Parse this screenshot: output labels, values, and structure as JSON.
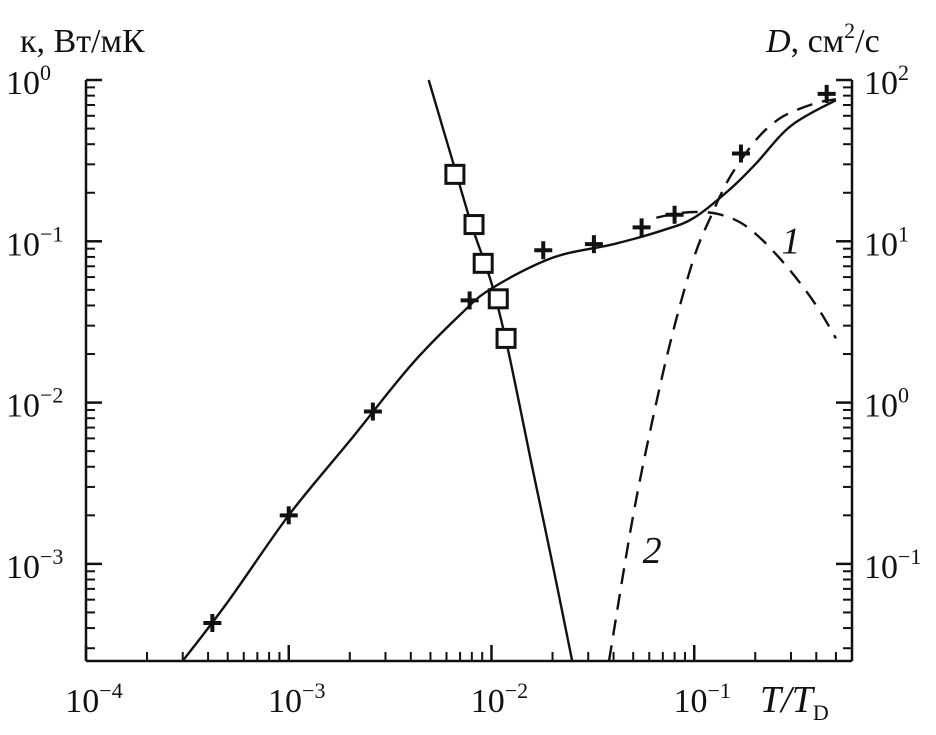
{
  "chart_data": {
    "type": "scatter",
    "x_scale": "log",
    "y_left_scale": "log",
    "y_right_scale": "log",
    "xlim": [
      0.0001,
      0.6
    ],
    "ylim_left": [
      0.00025,
      1
    ],
    "ylim_right": [
      0.025,
      100
    ],
    "grid": false,
    "x_axis_label": {
      "main": "T/T",
      "subscript": "D"
    },
    "y_left_label": "к, Вт/мК",
    "y_right_label": {
      "italic": "D",
      "text": ", см",
      "sup": "2",
      "tail": "/с"
    },
    "x_ticks": [
      {
        "value": 0.0001,
        "base": "10",
        "exp": "−4"
      },
      {
        "value": 0.001,
        "base": "10",
        "exp": "−3"
      },
      {
        "value": 0.01,
        "base": "10",
        "exp": "−2"
      },
      {
        "value": 0.1,
        "base": "10",
        "exp": "−1"
      }
    ],
    "y_left_ticks": [
      {
        "value": 1,
        "base": "10",
        "exp": "0"
      },
      {
        "value": 0.1,
        "base": "10",
        "exp": "−1"
      },
      {
        "value": 0.01,
        "base": "10",
        "exp": "−2"
      },
      {
        "value": 0.001,
        "base": "10",
        "exp": "−3"
      }
    ],
    "y_right_ticks": [
      {
        "value": 100,
        "base": "10",
        "exp": "2"
      },
      {
        "value": 10,
        "base": "10",
        "exp": "1"
      },
      {
        "value": 1,
        "base": "10",
        "exp": "0"
      },
      {
        "value": 0.1,
        "base": "10",
        "exp": "−1"
      }
    ],
    "series": [
      {
        "marker": "cross",
        "axis": "left",
        "x": [
          0.00042,
          0.001,
          0.0026,
          0.0078,
          0.018,
          0.032,
          0.055,
          0.08,
          0.17,
          0.45
        ],
        "y": [
          0.00043,
          0.002,
          0.0088,
          0.043,
          0.088,
          0.096,
          0.122,
          0.146,
          0.35,
          0.82
        ]
      },
      {
        "marker": "square",
        "axis": "right",
        "x": [
          0.0066,
          0.0082,
          0.0091,
          0.0108,
          0.0118
        ],
        "y": [
          26,
          12.7,
          7.3,
          4.4,
          2.5
        ]
      },
      {
        "line": "solid",
        "axis": "left",
        "x": [
          0.0003,
          0.0005,
          0.001,
          0.002,
          0.004,
          0.007,
          0.01,
          0.02,
          0.04,
          0.07,
          0.1,
          0.15,
          0.2,
          0.3,
          0.5
        ],
        "y": [
          0.00025,
          0.00058,
          0.002,
          0.0058,
          0.017,
          0.035,
          0.051,
          0.079,
          0.096,
          0.117,
          0.14,
          0.21,
          0.3,
          0.52,
          0.75
        ]
      },
      {
        "line": "solid",
        "axis": "right",
        "x": [
          0.0049,
          0.0065,
          0.008,
          0.01,
          0.012,
          0.016,
          0.02,
          0.025
        ],
        "y": [
          100,
          30,
          12.5,
          5.5,
          2.2,
          0.38,
          0.1,
          0.025
        ]
      },
      {
        "name": "1",
        "line": "dashed",
        "axis": "left",
        "x": [
          0.065,
          0.08,
          0.1,
          0.13,
          0.17,
          0.22,
          0.3,
          0.4,
          0.5
        ],
        "y": [
          0.14,
          0.148,
          0.152,
          0.148,
          0.13,
          0.1,
          0.065,
          0.04,
          0.025
        ]
      },
      {
        "name": "2",
        "line": "dashed",
        "axis": "left",
        "x": [
          0.038,
          0.05,
          0.065,
          0.08,
          0.1,
          0.12,
          0.15,
          0.2,
          0.25,
          0.3,
          0.4,
          0.5
        ],
        "y": [
          0.00025,
          0.002,
          0.01,
          0.03,
          0.08,
          0.14,
          0.25,
          0.42,
          0.55,
          0.63,
          0.72,
          0.76
        ]
      }
    ],
    "annotations": [
      {
        "text": "1",
        "x": 0.3,
        "y": 0.1,
        "axis": "left"
      },
      {
        "text": "2",
        "x": 0.062,
        "y": 0.0012,
        "axis": "left"
      }
    ]
  }
}
